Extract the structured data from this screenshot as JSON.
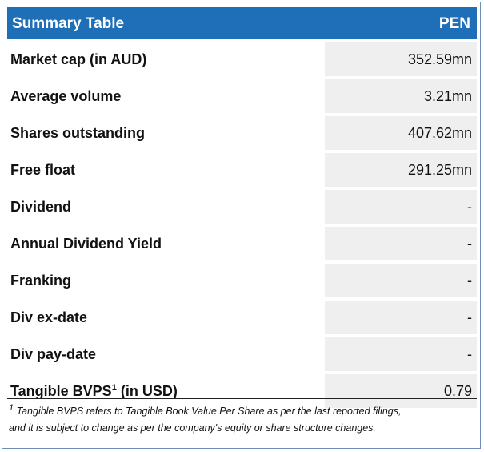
{
  "table": {
    "title": "Summary Table",
    "ticker": "PEN",
    "rows": [
      {
        "label": "Market cap (in AUD)",
        "value": "352.59mn"
      },
      {
        "label": "Average volume",
        "value": "3.21mn"
      },
      {
        "label": "Shares outstanding",
        "value": "407.62mn"
      },
      {
        "label": "Free float",
        "value": "291.25mn"
      },
      {
        "label": "Dividend",
        "value": "-"
      },
      {
        "label": "Annual Dividend Yield",
        "value": "-"
      },
      {
        "label": "Franking",
        "value": "-"
      },
      {
        "label": "Div ex-date",
        "value": "-"
      },
      {
        "label": "Div pay-date",
        "value": "-"
      },
      {
        "label": "Tangible BVPS",
        "sup": "1",
        "suffix": "(in USD)",
        "value": "0.79"
      }
    ]
  },
  "footnote": {
    "marker": "1",
    "lines": [
      "Tangible BVPS refers to Tangible Book Value Per Share as per the last reported filings,",
      "and it is subject to change as per the company's equity or share structure changes."
    ]
  }
}
